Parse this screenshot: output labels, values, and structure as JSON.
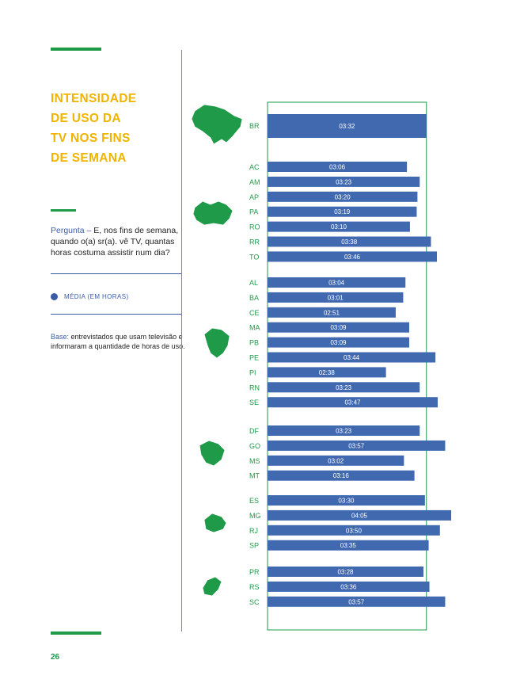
{
  "title_lines": [
    "INTENSIDADE",
    "DE USO DA",
    "TV NOS FINS",
    "DE SEMANA"
  ],
  "question": {
    "label": "Pergunta –",
    "text": "E, nos fins de semana, quando o(a) sr(a). vê TV, quantas horas costuma assistir num dia?"
  },
  "legend": {
    "label": "MÉDIA (EM HORAS)"
  },
  "base": {
    "label": "Base:",
    "text": "entrevistados que usam televisão e informaram a quantidade de horas de uso."
  },
  "page_number": "26",
  "colors": {
    "bar": "#4169b0",
    "green": "#1f9a48",
    "yellow": "#f0b400",
    "map": "#1f9a48"
  },
  "chart_data": {
    "type": "bar",
    "orientation": "horizontal",
    "title": "INTENSIDADE DE USO DA TV NOS FINS DE SEMANA",
    "xlabel": "",
    "ylabel": "",
    "unit": "hh:mm",
    "xlim_minutes": [
      0,
      260
    ],
    "groups": [
      {
        "region": "Brasil",
        "rows": [
          {
            "label": "BR",
            "value": 212,
            "display": "03:32"
          }
        ]
      },
      {
        "region": "Norte",
        "rows": [
          {
            "label": "AC",
            "value": 186,
            "display": "03:06"
          },
          {
            "label": "AM",
            "value": 203,
            "display": "03:23"
          },
          {
            "label": "AP",
            "value": 200,
            "display": "03:20"
          },
          {
            "label": "PA",
            "value": 199,
            "display": "03:19"
          },
          {
            "label": "RO",
            "value": 190,
            "display": "03:10"
          },
          {
            "label": "RR",
            "value": 218,
            "display": "03:38"
          },
          {
            "label": "TO",
            "value": 226,
            "display": "03:46"
          }
        ]
      },
      {
        "region": "Nordeste",
        "rows": [
          {
            "label": "AL",
            "value": 184,
            "display": "03:04"
          },
          {
            "label": "BA",
            "value": 181,
            "display": "03:01"
          },
          {
            "label": "CE",
            "value": 171,
            "display": "02:51"
          },
          {
            "label": "MA",
            "value": 189,
            "display": "03:09"
          },
          {
            "label": "PB",
            "value": 189,
            "display": "03:09"
          },
          {
            "label": "PE",
            "value": 224,
            "display": "03:44"
          },
          {
            "label": "PI",
            "value": 158,
            "display": "02:38"
          },
          {
            "label": "RN",
            "value": 203,
            "display": "03:23"
          },
          {
            "label": "SE",
            "value": 227,
            "display": "03:47"
          }
        ]
      },
      {
        "region": "Centro-Oeste",
        "rows": [
          {
            "label": "DF",
            "value": 203,
            "display": "03:23"
          },
          {
            "label": "GO",
            "value": 237,
            "display": "03:57"
          },
          {
            "label": "MS",
            "value": 182,
            "display": "03:02"
          },
          {
            "label": "MT",
            "value": 196,
            "display": "03:16"
          }
        ]
      },
      {
        "region": "Sudeste",
        "rows": [
          {
            "label": "ES",
            "value": 210,
            "display": "03:30"
          },
          {
            "label": "MG",
            "value": 245,
            "display": "04:05"
          },
          {
            "label": "RJ",
            "value": 230,
            "display": "03:50"
          },
          {
            "label": "SP",
            "value": 215,
            "display": "03:35"
          }
        ]
      },
      {
        "region": "Sul",
        "rows": [
          {
            "label": "PR",
            "value": 208,
            "display": "03:28"
          },
          {
            "label": "RS",
            "value": 216,
            "display": "03:36"
          },
          {
            "label": "SC",
            "value": 237,
            "display": "03:57"
          }
        ]
      }
    ]
  }
}
